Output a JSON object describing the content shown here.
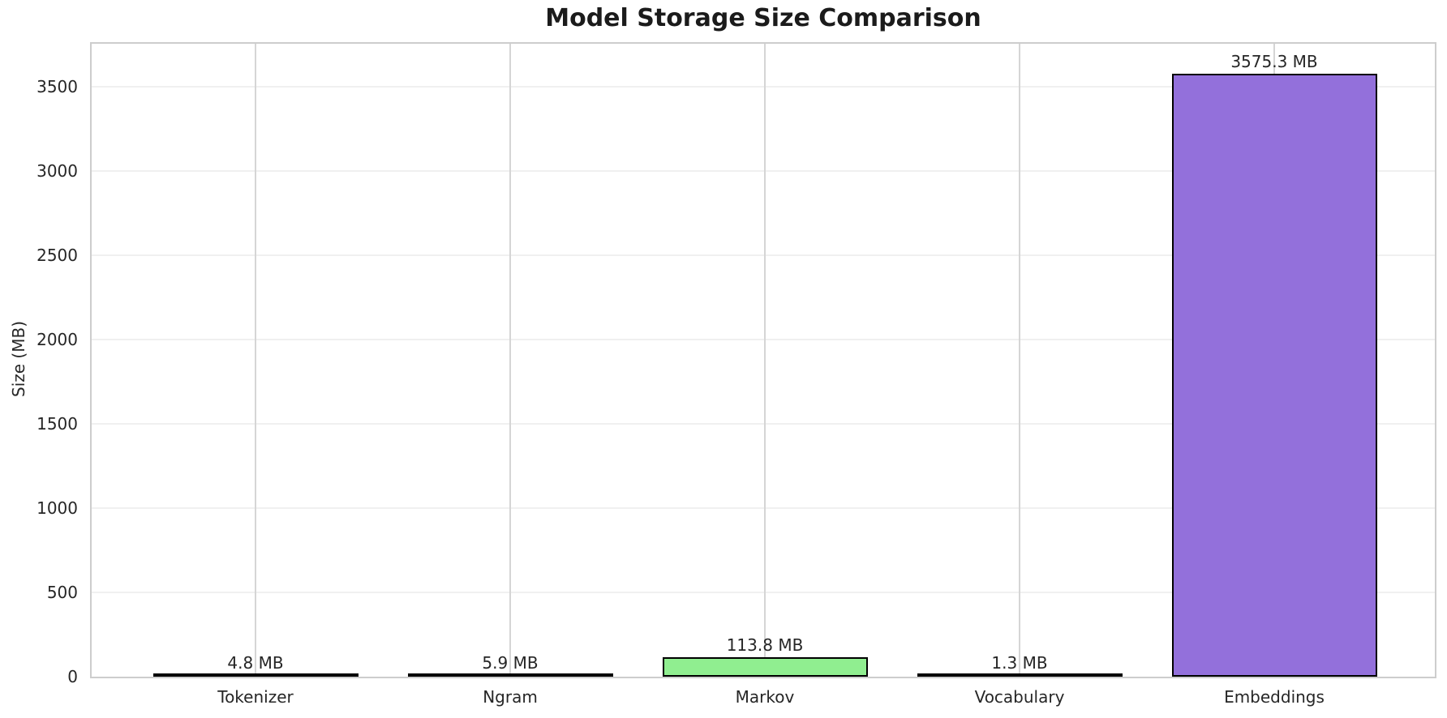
{
  "chart_data": {
    "type": "bar",
    "title": "Model Storage Size Comparison",
    "ylabel": "Size (MB)",
    "xlabel": "",
    "categories": [
      "Tokenizer",
      "Ngram",
      "Markov",
      "Vocabulary",
      "Embeddings"
    ],
    "values": [
      4.8,
      5.9,
      113.8,
      1.3,
      3575.3
    ],
    "bar_labels": [
      "4.8 MB",
      "5.9 MB",
      "113.8 MB",
      "1.3 MB",
      "3575.3 MB"
    ],
    "bar_colors": [
      "#87ceeb",
      "#fa8072",
      "#90ee90",
      "#ffd700",
      "#9370db"
    ],
    "bar_edge_color": "#000000",
    "yticks": [
      0,
      500,
      1000,
      1500,
      2000,
      2500,
      3000,
      3500
    ],
    "ylim": [
      0,
      3754
    ],
    "grid": true,
    "legend_position": "none",
    "colors": {
      "markov_bar_green": "#90ee90",
      "embeddings_bar_purple": "#9370db",
      "grid_horizontal": "#f0f0f0",
      "grid_vertical": "#d5d5d5",
      "spine": "#cdcdcd",
      "text": "#262626"
    }
  }
}
